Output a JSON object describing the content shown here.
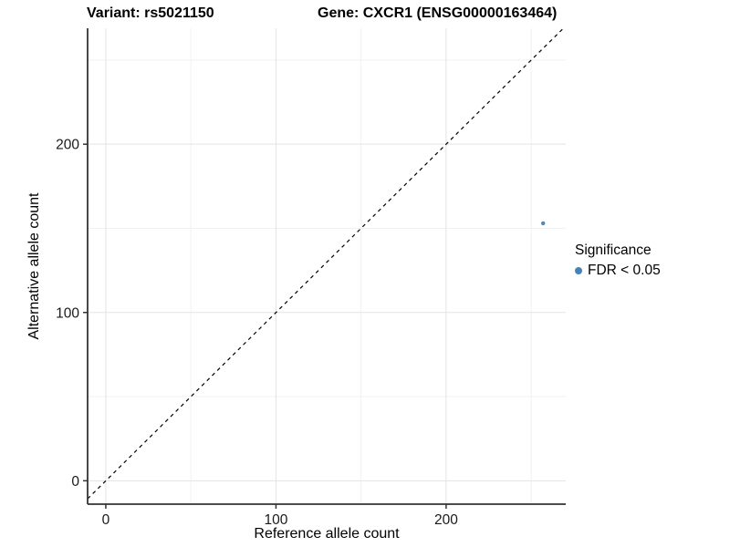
{
  "title": {
    "variant": "Variant: rs5021150",
    "gene": "Gene: CXCR1 (ENSG00000163464)"
  },
  "chart_data": {
    "type": "scatter",
    "xlabel": "Reference allele count",
    "ylabel": "Alternative allele count",
    "xlim": [
      -10.7,
      270.3
    ],
    "ylim": [
      -13.9,
      268.9
    ],
    "x_major_ticks": [
      0,
      100,
      200
    ],
    "y_major_ticks": [
      0,
      100,
      200
    ],
    "x_minor_ticks": [
      50,
      150,
      250
    ],
    "y_minor_ticks": [
      50,
      150,
      250
    ],
    "grid": true,
    "points": [
      {
        "x": 257,
        "y": 153,
        "series": "FDR < 0.05"
      }
    ],
    "reference_line": {
      "slope": 1,
      "intercept": 0,
      "style": "dashed",
      "color": "#000000"
    },
    "legend": {
      "title": "Significance",
      "position": "right",
      "items": [
        {
          "label": "FDR < 0.05",
          "color": "#4682B4"
        }
      ]
    },
    "colors": {
      "point": "#4682B4",
      "grid_major": "#e3e3e3",
      "grid_minor": "#f1f1f1",
      "axis_line": "#333333",
      "tick_label": "#1a1a1a"
    }
  }
}
